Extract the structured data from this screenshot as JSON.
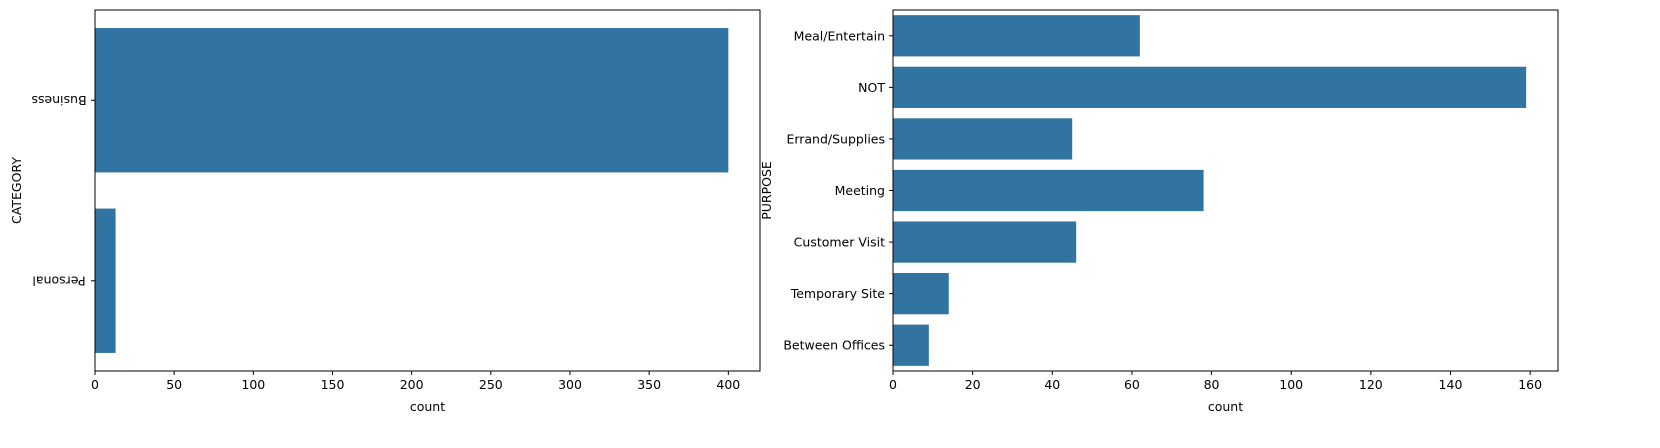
{
  "chart_data": [
    {
      "type": "bar",
      "orientation": "horizontal",
      "categories": [
        "Business",
        "Personal"
      ],
      "values": [
        400,
        13
      ],
      "xlabel": "count",
      "ylabel": "CATEGORY",
      "xlim": [
        0,
        420
      ],
      "xticks": [
        0,
        50,
        100,
        150,
        200,
        250,
        300,
        350,
        400
      ],
      "category_labels_rotated": true,
      "bar_color": "#3274a1",
      "grid": false
    },
    {
      "type": "bar",
      "orientation": "horizontal",
      "categories": [
        "Meal/Entertain",
        "NOT",
        "Errand/Supplies",
        "Meeting",
        "Customer Visit",
        "Temporary Site",
        "Between Offices"
      ],
      "values": [
        62,
        159,
        45,
        78,
        46,
        14,
        9
      ],
      "xlabel": "count",
      "ylabel": "PURPOSE",
      "xlim": [
        0,
        167
      ],
      "xticks": [
        0,
        20,
        40,
        60,
        80,
        100,
        120,
        140,
        160
      ],
      "category_labels_rotated": false,
      "bar_color": "#3274a1",
      "grid": false
    }
  ]
}
